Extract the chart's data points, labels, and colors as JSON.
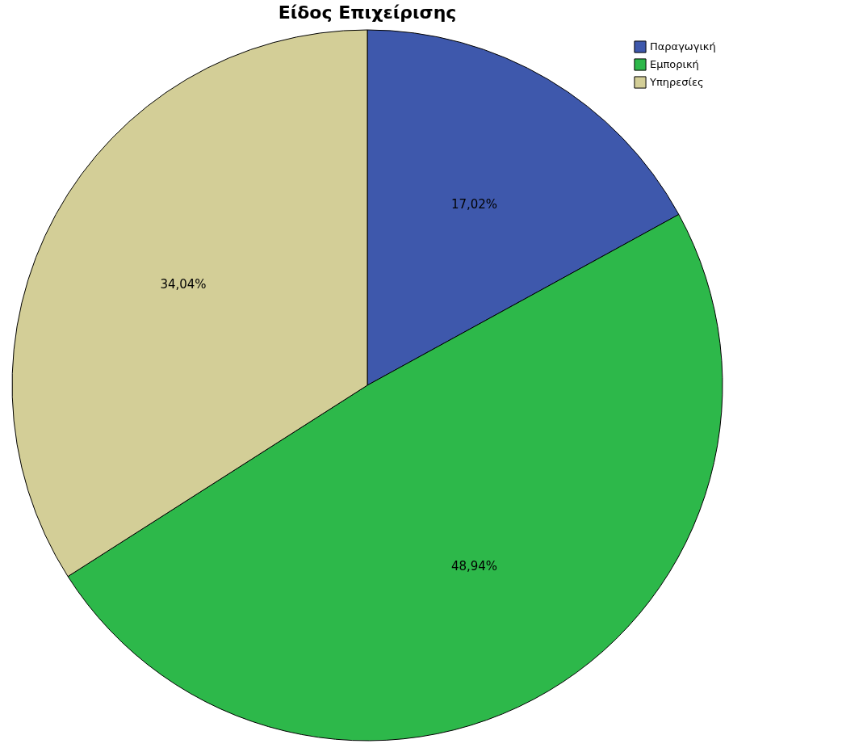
{
  "chart_data": {
    "type": "pie",
    "title": "Είδος Επιχείρισης",
    "categories": [
      "Παραγωγική",
      "Εμπορική",
      "Υπηρεσίες"
    ],
    "values": [
      17.02,
      48.94,
      34.04
    ],
    "colors": [
      "#3e58ac",
      "#2db84a",
      "#d3ce97"
    ],
    "value_labels": [
      "17,02%",
      "48,94%",
      "34,04%"
    ],
    "legend": "top right"
  }
}
